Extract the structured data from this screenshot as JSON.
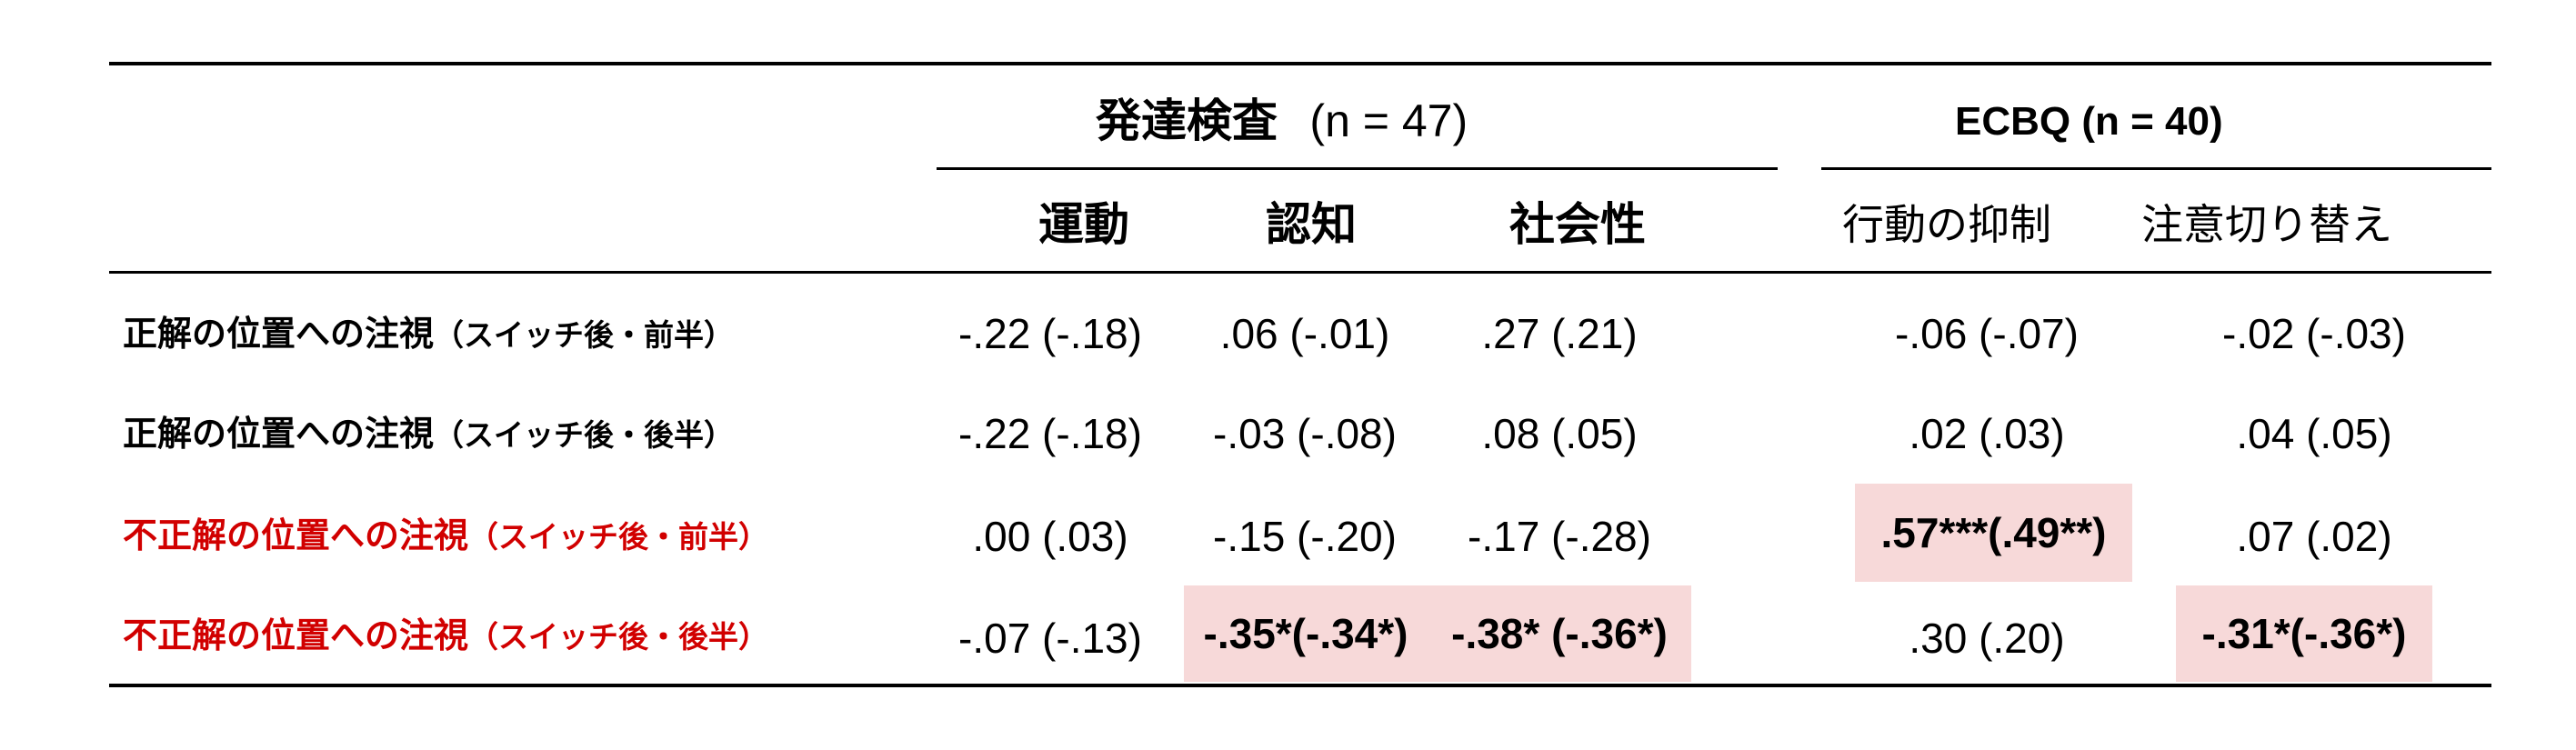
{
  "table": {
    "group_headers": [
      {
        "label_main": "発達検査",
        "label_n": "(n = 47)"
      },
      {
        "label_main": "ECBQ",
        "label_n": "(n = 40)"
      }
    ],
    "columns": [
      "運動",
      "認知",
      "社会性",
      "行動の抑制",
      "注意切り替え"
    ],
    "rows": [
      {
        "label": "正解の位置への注視",
        "qualifier": "（スイッチ後・前半）",
        "label_color": "#000000",
        "cells": [
          {
            "text": "-.22 (-.18)",
            "highlight": false,
            "bold": false
          },
          {
            "text": ".06 (-.01)",
            "highlight": false,
            "bold": false
          },
          {
            "text": ".27 (.21)",
            "highlight": false,
            "bold": false
          },
          {
            "text": "-.06 (-.07)",
            "highlight": false,
            "bold": false
          },
          {
            "text": "-.02 (-.03)",
            "highlight": false,
            "bold": false
          }
        ]
      },
      {
        "label": "正解の位置への注視",
        "qualifier": "（スイッチ後・後半）",
        "label_color": "#000000",
        "cells": [
          {
            "text": "-.22 (-.18)",
            "highlight": false,
            "bold": false
          },
          {
            "text": "-.03 (-.08)",
            "highlight": false,
            "bold": false
          },
          {
            "text": ".08 (.05)",
            "highlight": false,
            "bold": false
          },
          {
            "text": ".02 (.03)",
            "highlight": false,
            "bold": false
          },
          {
            "text": ".04 (.05)",
            "highlight": false,
            "bold": false
          }
        ]
      },
      {
        "label": "不正解の位置への注視",
        "qualifier": "（スイッチ後・前半）",
        "label_color": "#d10000",
        "cells": [
          {
            "text": ".00 (.03)",
            "highlight": false,
            "bold": false
          },
          {
            "text": "-.15 (-.20)",
            "highlight": false,
            "bold": false
          },
          {
            "text": "-.17 (-.28)",
            "highlight": false,
            "bold": false
          },
          {
            "text": ".57***(.49**)",
            "highlight": true,
            "bold": true
          },
          {
            "text": ".07 (.02)",
            "highlight": false,
            "bold": false
          }
        ]
      },
      {
        "label": "不正解の位置への注視",
        "qualifier": "（スイッチ後・後半）",
        "label_color": "#d10000",
        "cells": [
          {
            "text": "-.07 (-.13)",
            "highlight": false,
            "bold": false
          },
          {
            "text": "-.35*(-.34*)",
            "highlight": true,
            "bold": true
          },
          {
            "text": "-.38* (-.36*)",
            "highlight": true,
            "bold": true
          },
          {
            "text": ".30 (.20)",
            "highlight": false,
            "bold": false
          },
          {
            "text": "-.31*(-.36*)",
            "highlight": true,
            "bold": true
          }
        ]
      }
    ],
    "highlight_color": "#f7d9d9"
  }
}
